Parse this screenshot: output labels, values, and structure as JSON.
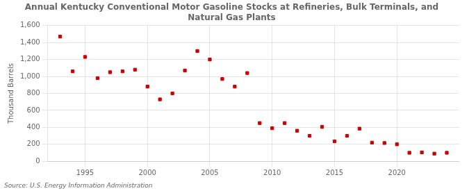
{
  "chart_data": {
    "type": "scatter",
    "title": "Annual Kentucky Conventional Motor Gasoline Stocks at Refineries, Bulk Terminals, and Natural Gas Plants",
    "y_label": "Thousand Barrels",
    "annotation": "Source: U.S. Energy Information Administration",
    "x": [
      1993,
      1994,
      1995,
      1996,
      1997,
      1998,
      1999,
      2000,
      2001,
      2002,
      2003,
      2004,
      2005,
      2006,
      2007,
      2008,
      2009,
      2010,
      2011,
      2012,
      2013,
      2014,
      2015,
      2016,
      2017,
      2018,
      2019,
      2020,
      2021,
      2022,
      2023,
      2024
    ],
    "values": [
      1470,
      1060,
      1230,
      980,
      1050,
      1060,
      1080,
      880,
      730,
      800,
      1070,
      1300,
      1200,
      970,
      880,
      1040,
      450,
      390,
      450,
      360,
      300,
      405,
      235,
      300,
      385,
      220,
      215,
      200,
      100,
      105,
      90,
      100
    ],
    "color": "#cc0000",
    "marker": "square",
    "xlim": [
      1992,
      2025
    ],
    "xticks": [
      1995,
      2000,
      2005,
      2010,
      2015,
      2020
    ],
    "ylim": [
      0,
      1600
    ],
    "yticks": [
      0,
      200,
      400,
      600,
      800,
      {
        "value": 1000,
        "label": "1,000"
      },
      {
        "value": 1200,
        "label": "1,200"
      },
      {
        "value": 1400,
        "label": "1,400"
      },
      {
        "value": 1600,
        "label": "1,600"
      }
    ],
    "grid": true
  }
}
